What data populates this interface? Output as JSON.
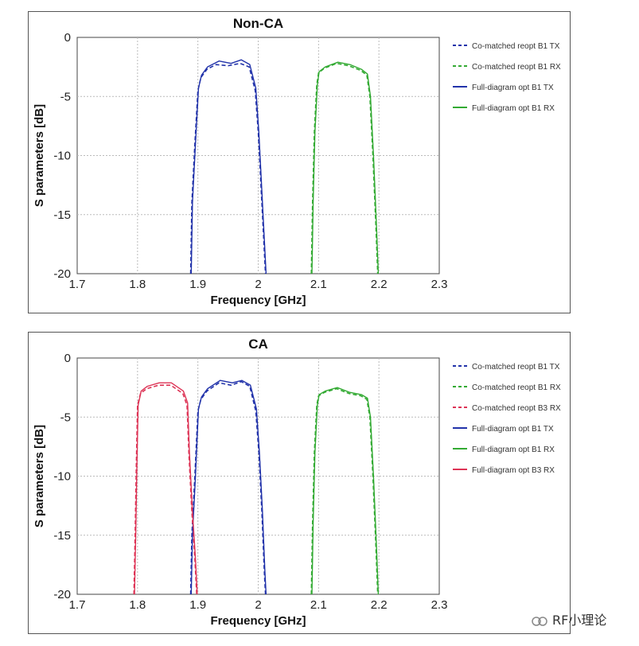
{
  "watermark": "RF小理论",
  "chart_data": [
    {
      "type": "line",
      "title": "Non-CA",
      "xlabel": "Frequency [GHz]",
      "ylabel": "S parameters [dB]",
      "xlim": [
        1.7,
        2.3
      ],
      "ylim": [
        -20,
        0
      ],
      "xticks": [
        "1.7",
        "1.8",
        "1.9",
        "2",
        "2.1",
        "2.2",
        "2.3"
      ],
      "yticks": [
        "0",
        "-5",
        "-10",
        "-15",
        "-20"
      ],
      "grid": true,
      "legend_position": "right",
      "series": [
        {
          "name": "Co-matched reopt B1 TX",
          "color": "#2233aa",
          "dash": true,
          "x": [
            1.888,
            1.89,
            1.895,
            1.9,
            1.905,
            1.915,
            1.93,
            1.95,
            1.97,
            1.985,
            1.995,
            2.0,
            2.005,
            2.01,
            2.012
          ],
          "y": [
            -20,
            -14,
            -9,
            -4.5,
            -3.4,
            -2.7,
            -2.3,
            -2.4,
            -2.2,
            -2.5,
            -4.5,
            -8,
            -13,
            -18,
            -20
          ]
        },
        {
          "name": "Co-matched reopt B1 RX",
          "color": "#33aa33",
          "dash": true,
          "x": [
            2.088,
            2.09,
            2.093,
            2.097,
            2.1,
            2.11,
            2.13,
            2.15,
            2.17,
            2.18,
            2.185,
            2.19,
            2.195,
            2.198
          ],
          "y": [
            -20,
            -14,
            -8,
            -4,
            -3.0,
            -2.6,
            -2.2,
            -2.4,
            -2.8,
            -3.2,
            -5,
            -10,
            -16,
            -20
          ]
        },
        {
          "name": "Full-diagram opt B1 TX",
          "color": "#2233aa",
          "dash": false,
          "x": [
            1.889,
            1.891,
            1.896,
            1.901,
            1.906,
            1.916,
            1.935,
            1.955,
            1.972,
            1.986,
            1.996,
            2.001,
            2.006,
            2.011,
            2.013
          ],
          "y": [
            -20,
            -14,
            -9,
            -4.3,
            -3.2,
            -2.5,
            -2.0,
            -2.2,
            -1.9,
            -2.3,
            -4.3,
            -8,
            -13,
            -18,
            -20
          ]
        },
        {
          "name": "Full-diagram opt B1 RX",
          "color": "#33aa33",
          "dash": false,
          "x": [
            2.089,
            2.091,
            2.094,
            2.098,
            2.101,
            2.111,
            2.132,
            2.152,
            2.171,
            2.181,
            2.186,
            2.191,
            2.196,
            2.199
          ],
          "y": [
            -20,
            -14,
            -8,
            -4,
            -2.9,
            -2.5,
            -2.1,
            -2.3,
            -2.7,
            -3.1,
            -5,
            -10,
            -16,
            -20
          ]
        }
      ]
    },
    {
      "type": "line",
      "title": "CA",
      "xlabel": "Frequency [GHz]",
      "ylabel": "S parameters [dB]",
      "xlim": [
        1.7,
        2.3
      ],
      "ylim": [
        -20,
        0
      ],
      "xticks": [
        "1.7",
        "1.8",
        "1.9",
        "2",
        "2.1",
        "2.2",
        "2.3"
      ],
      "yticks": [
        "0",
        "-5",
        "-10",
        "-15",
        "-20"
      ],
      "grid": true,
      "legend_position": "right",
      "series": [
        {
          "name": "Co-matched reopt B1 TX",
          "color": "#2233aa",
          "dash": true,
          "x": [
            1.888,
            1.89,
            1.895,
            1.9,
            1.905,
            1.915,
            1.935,
            1.955,
            1.972,
            1.986,
            1.996,
            2.001,
            2.006,
            2.01,
            2.012
          ],
          "y": [
            -20,
            -15,
            -10,
            -4.5,
            -3.5,
            -2.8,
            -2.1,
            -2.3,
            -2.0,
            -2.4,
            -4.5,
            -8,
            -13,
            -18,
            -20
          ]
        },
        {
          "name": "Co-matched reopt B1 RX",
          "color": "#33aa33",
          "dash": true,
          "x": [
            2.088,
            2.09,
            2.093,
            2.097,
            2.1,
            2.11,
            2.13,
            2.15,
            2.17,
            2.18,
            2.185,
            2.19,
            2.195,
            2.198
          ],
          "y": [
            -20,
            -14,
            -8,
            -4,
            -3.2,
            -2.9,
            -2.6,
            -3.0,
            -3.2,
            -3.5,
            -5,
            -10,
            -16,
            -20
          ]
        },
        {
          "name": "Co-matched reopt B3 RX",
          "color": "#dd3355",
          "dash": true,
          "x": [
            1.794,
            1.796,
            1.798,
            1.8,
            1.805,
            1.815,
            1.835,
            1.855,
            1.875,
            1.882,
            1.885,
            1.89,
            1.895,
            1.898
          ],
          "y": [
            -20,
            -15,
            -9,
            -4,
            -3.0,
            -2.6,
            -2.3,
            -2.3,
            -3.0,
            -4,
            -8,
            -13,
            -17,
            -20
          ]
        },
        {
          "name": "Full-diagram opt B1 TX",
          "color": "#2233aa",
          "dash": false,
          "x": [
            1.889,
            1.891,
            1.896,
            1.901,
            1.906,
            1.916,
            1.937,
            1.957,
            1.973,
            1.987,
            1.997,
            2.002,
            2.007,
            2.011,
            2.013
          ],
          "y": [
            -20,
            -15,
            -10,
            -4.3,
            -3.3,
            -2.6,
            -1.9,
            -2.1,
            -1.9,
            -2.3,
            -4.3,
            -8,
            -13,
            -18,
            -20
          ]
        },
        {
          "name": "Full-diagram opt B1 RX",
          "color": "#33aa33",
          "dash": false,
          "x": [
            2.089,
            2.091,
            2.094,
            2.098,
            2.101,
            2.111,
            2.131,
            2.151,
            2.171,
            2.181,
            2.186,
            2.191,
            2.196,
            2.199
          ],
          "y": [
            -20,
            -14,
            -8,
            -4,
            -3.1,
            -2.8,
            -2.5,
            -2.9,
            -3.1,
            -3.4,
            -5,
            -10,
            -16,
            -20
          ]
        },
        {
          "name": "Full-diagram opt B3 RX",
          "color": "#dd3355",
          "dash": false,
          "x": [
            1.795,
            1.797,
            1.799,
            1.801,
            1.806,
            1.816,
            1.836,
            1.856,
            1.876,
            1.883,
            1.886,
            1.891,
            1.896,
            1.899
          ],
          "y": [
            -20,
            -15,
            -9,
            -4,
            -2.8,
            -2.4,
            -2.1,
            -2.1,
            -2.8,
            -3.8,
            -8,
            -13,
            -17,
            -20
          ]
        }
      ]
    }
  ]
}
